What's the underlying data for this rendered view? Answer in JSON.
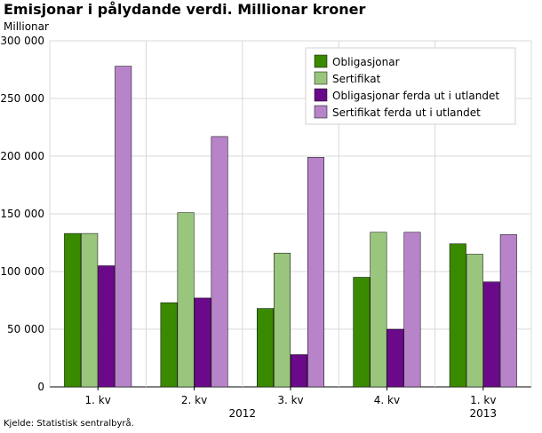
{
  "chart_data": {
    "type": "bar",
    "title": "Emisjonar i pålydande verdi. Millionar kroner",
    "ylabel": "Millionar",
    "source": "Kjelde: Statistisk sentralbyrå.",
    "categories": [
      "1. kv",
      "2. kv",
      "3. kv",
      "4. kv",
      "1. kv"
    ],
    "year_labels": [
      {
        "label": "2012",
        "from": 0,
        "to": 3
      },
      {
        "label": "2013",
        "from": 4,
        "to": 4
      }
    ],
    "ylim": [
      0,
      300000
    ],
    "yticks": [
      0,
      50000,
      100000,
      150000,
      200000,
      250000,
      300000
    ],
    "ytick_labels": [
      "0",
      "50 000",
      "100 000",
      "150 000",
      "200 000",
      "250 000",
      "300 000"
    ],
    "grid": true,
    "legend_position": "top-right",
    "series": [
      {
        "name": "Obligasjonar",
        "color": "#3a8a00",
        "values": [
          133000,
          73000,
          68000,
          95000,
          124000
        ]
      },
      {
        "name": "Sertifikat",
        "color": "#9ac57d",
        "values": [
          133000,
          151000,
          116000,
          134000,
          115000
        ]
      },
      {
        "name": "Obligasjonar ferda ut i utlandet",
        "color": "#6a0a8a",
        "values": [
          105000,
          77000,
          28000,
          50000,
          91000
        ]
      },
      {
        "name": "Sertifikat ferda ut i utlandet",
        "color": "#b784c9",
        "values": [
          278000,
          217000,
          199000,
          134000,
          132000
        ]
      }
    ]
  }
}
